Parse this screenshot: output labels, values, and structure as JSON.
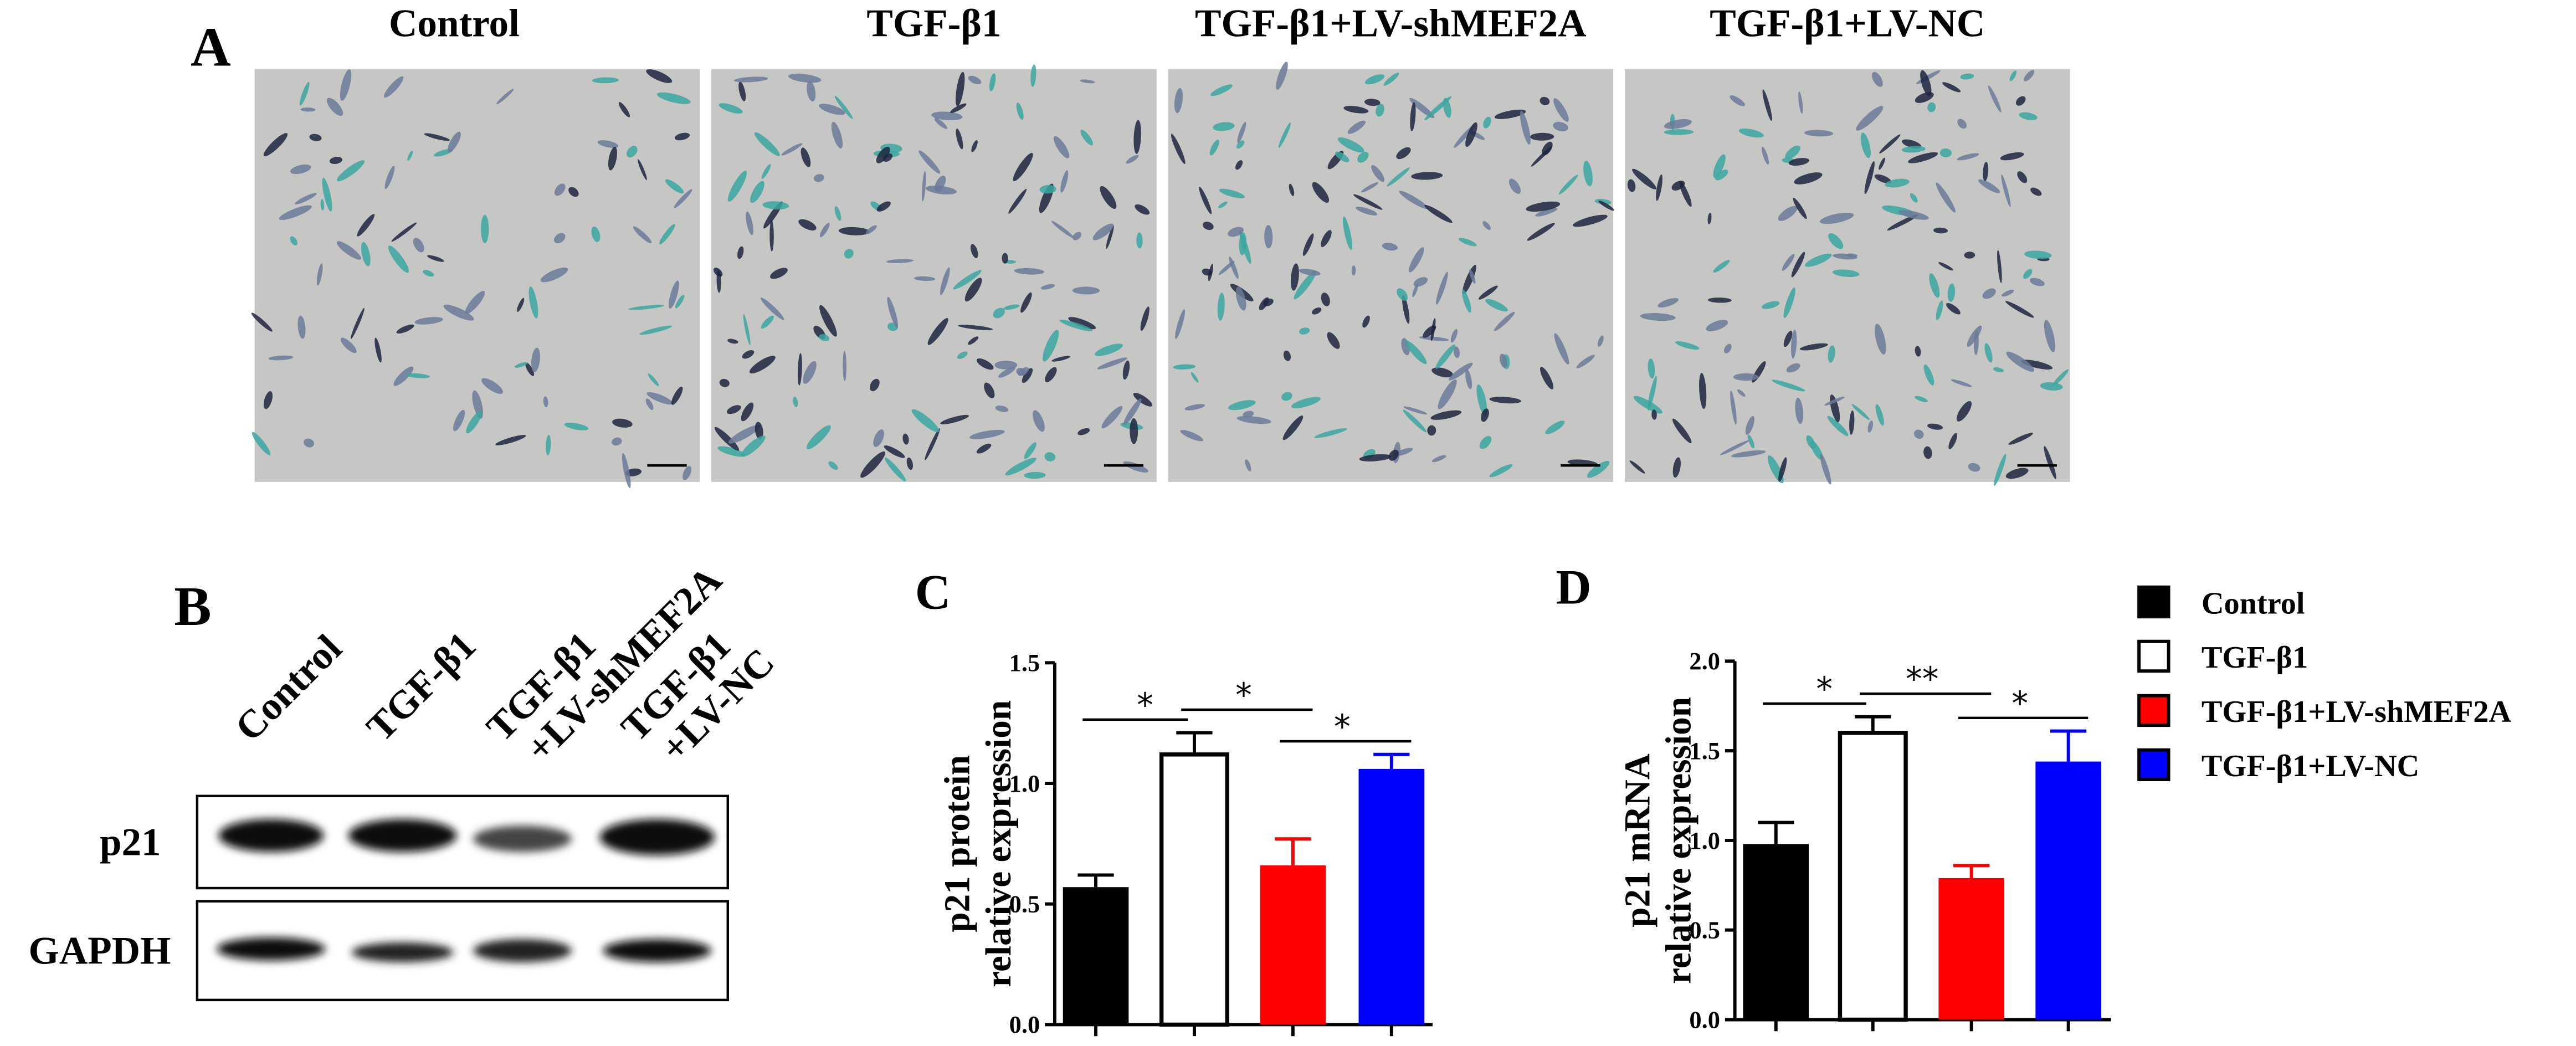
{
  "panel_a": {
    "label": "A",
    "images": [
      "Control",
      "TGF-β1",
      "TGF-β1+LV-shMEF2A",
      "TGF-β1+LV-NC"
    ]
  },
  "panel_b": {
    "label": "B",
    "lanes": [
      [
        "Control"
      ],
      [
        "TGF-β1"
      ],
      [
        "TGF-β1",
        "+LV-shMEF2A"
      ],
      [
        "TGF-β1",
        "+LV-NC"
      ]
    ],
    "rows": [
      "p21",
      "GAPDH"
    ]
  },
  "chart_data": [
    {
      "type": "bar",
      "panel_label": "C",
      "y_label": [
        "p21 protein",
        "relative expression"
      ],
      "values": [
        0.57,
        1.12,
        0.66,
        1.06
      ],
      "errors": [
        0.05,
        0.09,
        0.11,
        0.06
      ],
      "colors": [
        "#000000",
        "#ffffff",
        "#ff0000",
        "#0000ff"
      ],
      "ylim": [
        0,
        1.5
      ],
      "yticks": [
        {
          "value": 0,
          "label": "0.0"
        },
        0.5,
        {
          "value": 1,
          "label": "1.0"
        },
        1.5
      ],
      "significance": [
        "*",
        "*",
        "*"
      ]
    },
    {
      "type": "bar",
      "panel_label": "D",
      "y_label": [
        "p21 mRNA",
        "relative expression"
      ],
      "categories": [
        "Control",
        "TGF-β1",
        "TGF-β1+LV-shMEF2A",
        "TGF-β1+LV-NC"
      ],
      "values": [
        0.98,
        1.6,
        0.79,
        1.44
      ],
      "errors": [
        0.12,
        0.09,
        0.07,
        0.17
      ],
      "colors": [
        "#000000",
        "#ffffff",
        "#ff0000",
        "#0000ff"
      ],
      "ylim": [
        0,
        2
      ],
      "yticks": [
        {
          "value": 0,
          "label": "0.0"
        },
        0.5,
        {
          "value": 1,
          "label": "1.0"
        },
        1.5,
        {
          "value": 2,
          "label": "2.0"
        }
      ],
      "significance": [
        "*",
        "**",
        "*"
      ],
      "legend": true
    }
  ]
}
